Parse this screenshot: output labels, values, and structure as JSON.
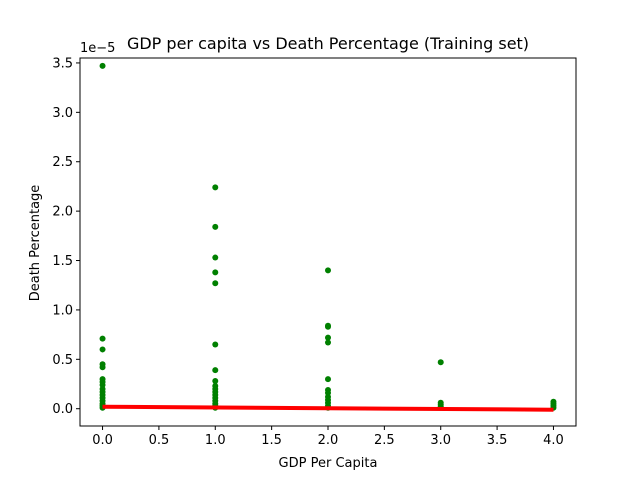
{
  "chart_data": {
    "type": "scatter",
    "title": "GDP per capita vs Death Percentage (Training set)",
    "xlabel": "GDP Per Capita",
    "ylabel": "Death Percentage",
    "y_offset_label": "1e−5",
    "xlim": [
      -0.2,
      4.2
    ],
    "ylim": [
      -1.75e-06,
      3.55e-05
    ],
    "x_ticks": [
      0.0,
      0.5,
      1.0,
      1.5,
      2.0,
      2.5,
      3.0,
      3.5,
      4.0
    ],
    "x_tick_labels": [
      "0.0",
      "0.5",
      "1.0",
      "1.5",
      "2.0",
      "2.5",
      "3.0",
      "3.5",
      "4.0"
    ],
    "y_ticks": [
      0,
      5e-06,
      1e-05,
      1.5e-05,
      2e-05,
      2.5e-05,
      3e-05,
      3.5e-05
    ],
    "y_tick_labels": [
      "0.0",
      "0.5",
      "1.0",
      "1.5",
      "2.0",
      "2.5",
      "3.0",
      "3.5"
    ],
    "grid": false,
    "series": [
      {
        "type": "scatter",
        "color": "#008000",
        "points": [
          [
            0,
            3.47e-05
          ],
          [
            0,
            7.1e-06
          ],
          [
            0,
            6e-06
          ],
          [
            0,
            4.5e-06
          ],
          [
            0,
            4.2e-06
          ],
          [
            0,
            3e-06
          ],
          [
            0,
            2.7e-06
          ],
          [
            0,
            2.4e-06
          ],
          [
            0,
            2e-06
          ],
          [
            0,
            1.7e-06
          ],
          [
            0,
            1.4e-06
          ],
          [
            0,
            1.1e-06
          ],
          [
            0,
            8e-07
          ],
          [
            0,
            5e-07
          ],
          [
            0,
            3e-07
          ],
          [
            0,
            1e-07
          ],
          [
            1,
            2.24e-05
          ],
          [
            1,
            1.84e-05
          ],
          [
            1,
            1.53e-05
          ],
          [
            1,
            1.38e-05
          ],
          [
            1,
            1.27e-05
          ],
          [
            1,
            6.5e-06
          ],
          [
            1,
            3.9e-06
          ],
          [
            1,
            2.8e-06
          ],
          [
            1,
            2.3e-06
          ],
          [
            1,
            2e-06
          ],
          [
            1,
            1.7e-06
          ],
          [
            1,
            1.4e-06
          ],
          [
            1,
            1.1e-06
          ],
          [
            1,
            8e-07
          ],
          [
            1,
            5e-07
          ],
          [
            1,
            3e-07
          ],
          [
            1,
            1e-07
          ],
          [
            2,
            1.4e-05
          ],
          [
            2,
            8.4e-06
          ],
          [
            2,
            8.3e-06
          ],
          [
            2,
            7.2e-06
          ],
          [
            2,
            6.7e-06
          ],
          [
            2,
            3e-06
          ],
          [
            2,
            1.9e-06
          ],
          [
            2,
            1.6e-06
          ],
          [
            2,
            1.2e-06
          ],
          [
            2,
            9e-07
          ],
          [
            2,
            6e-07
          ],
          [
            2,
            3e-07
          ],
          [
            2,
            1e-07
          ],
          [
            3,
            4.7e-06
          ],
          [
            3,
            6e-07
          ],
          [
            3,
            4e-07
          ],
          [
            3,
            2e-07
          ],
          [
            3,
            1e-07
          ],
          [
            4,
            7e-07
          ],
          [
            4,
            5e-07
          ],
          [
            4,
            3e-07
          ],
          [
            4,
            1e-07
          ]
        ]
      },
      {
        "type": "line",
        "color": "#ff0000",
        "x": [
          0,
          4
        ],
        "y": [
          2e-07,
          -1e-07
        ]
      }
    ]
  }
}
